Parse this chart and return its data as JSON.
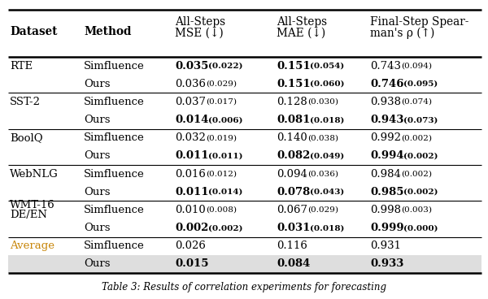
{
  "col_headers": [
    [
      "Dataset",
      false
    ],
    [
      "Method",
      false
    ],
    [
      "All-Steps\nMSE (↓)",
      false
    ],
    [
      "All-Steps\nMAE (↓)",
      false
    ],
    [
      "Final-Step Spear-\nman's ρ (↑)",
      false
    ]
  ],
  "rows": [
    {
      "dataset": "RTE",
      "dataset_color": "black",
      "dataset_two_line": false,
      "method": "Simfluence",
      "mse": "0.035",
      "mse_std": "(0.022)",
      "mse_bold": true,
      "mae": "0.151",
      "mae_std": "(0.054)",
      "mae_bold": true,
      "rho": "0.743",
      "rho_std": "(0.094)",
      "rho_bold": false,
      "row_bg": null,
      "separator_after": false
    },
    {
      "dataset": "",
      "dataset_color": "black",
      "dataset_two_line": false,
      "method": "Ours",
      "mse": "0.036",
      "mse_std": "(0.029)",
      "mse_bold": false,
      "mae": "0.151",
      "mae_std": "(0.060)",
      "mae_bold": true,
      "rho": "0.746",
      "rho_std": "(0.095)",
      "rho_bold": true,
      "row_bg": null,
      "separator_after": true
    },
    {
      "dataset": "SST-2",
      "dataset_color": "black",
      "dataset_two_line": false,
      "method": "Simfluence",
      "mse": "0.037",
      "mse_std": "(0.017)",
      "mse_bold": false,
      "mae": "0.128",
      "mae_std": "(0.030)",
      "mae_bold": false,
      "rho": "0.938",
      "rho_std": "(0.074)",
      "rho_bold": false,
      "row_bg": null,
      "separator_after": false
    },
    {
      "dataset": "",
      "dataset_color": "black",
      "dataset_two_line": false,
      "method": "Ours",
      "mse": "0.014",
      "mse_std": "(0.006)",
      "mse_bold": true,
      "mae": "0.081",
      "mae_std": "(0.018)",
      "mae_bold": true,
      "rho": "0.943",
      "rho_std": "(0.073)",
      "rho_bold": true,
      "row_bg": null,
      "separator_after": true
    },
    {
      "dataset": "BoolQ",
      "dataset_color": "black",
      "dataset_two_line": false,
      "method": "Simfluence",
      "mse": "0.032",
      "mse_std": "(0.019)",
      "mse_bold": false,
      "mae": "0.140",
      "mae_std": "(0.038)",
      "mae_bold": false,
      "rho": "0.992",
      "rho_std": "(0.002)",
      "rho_bold": false,
      "row_bg": null,
      "separator_after": false
    },
    {
      "dataset": "",
      "dataset_color": "black",
      "dataset_two_line": false,
      "method": "Ours",
      "mse": "0.011",
      "mse_std": "(0.011)",
      "mse_bold": true,
      "mae": "0.082",
      "mae_std": "(0.049)",
      "mae_bold": true,
      "rho": "0.994",
      "rho_std": "(0.002)",
      "rho_bold": true,
      "row_bg": null,
      "separator_after": true
    },
    {
      "dataset": "WebNLG",
      "dataset_color": "black",
      "dataset_two_line": false,
      "method": "Simfluence",
      "mse": "0.016",
      "mse_std": "(0.012)",
      "mse_bold": false,
      "mae": "0.094",
      "mae_std": "(0.036)",
      "mae_bold": false,
      "rho": "0.984",
      "rho_std": "(0.002)",
      "rho_bold": false,
      "row_bg": null,
      "separator_after": false
    },
    {
      "dataset": "",
      "dataset_color": "black",
      "dataset_two_line": false,
      "method": "Ours",
      "mse": "0.011",
      "mse_std": "(0.014)",
      "mse_bold": true,
      "mae": "0.078",
      "mae_std": "(0.043)",
      "mae_bold": true,
      "rho": "0.985",
      "rho_std": "(0.002)",
      "rho_bold": true,
      "row_bg": null,
      "separator_after": true
    },
    {
      "dataset": "WMT-16",
      "dataset_color": "black",
      "dataset_two_line": true,
      "dataset_line2": "DE/EN",
      "method": "Simfluence",
      "mse": "0.010",
      "mse_std": "(0.008)",
      "mse_bold": false,
      "mae": "0.067",
      "mae_std": "(0.029)",
      "mae_bold": false,
      "rho": "0.998",
      "rho_std": "(0.003)",
      "rho_bold": false,
      "row_bg": null,
      "separator_after": false
    },
    {
      "dataset": "",
      "dataset_color": "black",
      "dataset_two_line": false,
      "method": "Ours",
      "mse": "0.002",
      "mse_std": "(0.002)",
      "mse_bold": true,
      "mae": "0.031",
      "mae_std": "(0.018)",
      "mae_bold": true,
      "rho": "0.999",
      "rho_std": "(0.000)",
      "rho_bold": true,
      "row_bg": null,
      "separator_after": true
    },
    {
      "dataset": "Average",
      "dataset_color": "#c8860a",
      "dataset_two_line": false,
      "method": "Simfluence",
      "mse": "0.026",
      "mse_std": "",
      "mse_bold": false,
      "mae": "0.116",
      "mae_std": "",
      "mae_bold": false,
      "rho": "0.931",
      "rho_std": "",
      "rho_bold": false,
      "row_bg": null,
      "separator_after": false
    },
    {
      "dataset": "",
      "dataset_color": "black",
      "dataset_two_line": false,
      "method": "Ours",
      "mse": "0.015",
      "mse_std": "",
      "mse_bold": true,
      "mae": "0.084",
      "mae_std": "",
      "mae_bold": true,
      "rho": "0.933",
      "rho_std": "",
      "rho_bold": true,
      "row_bg": "#dedede",
      "separator_after": false
    }
  ],
  "caption": "Table 3: Results of correlation experiments for forecasting",
  "background_color": "#ffffff",
  "fig_width": 6.0,
  "fig_height": 3.68,
  "dpi": 100
}
